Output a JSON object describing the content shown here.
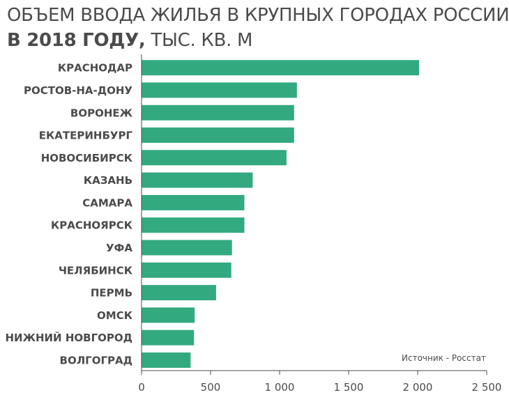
{
  "title": {
    "line1": "ОБЪЕМ ВВОДА ЖИЛЬЯ В КРУПНЫХ ГОРОДАХ РОССИИ",
    "line2_bold": "В 2018 ГОДУ,",
    "line2_rest": " ТЫС. КВ. М"
  },
  "source": "Источник - Росстат",
  "colors": {
    "bar": "#33a97f",
    "text": "#4b4b4b",
    "axis": "#4b4b4b"
  },
  "chart_data": {
    "type": "bar",
    "orientation": "horizontal",
    "title": "ОБЪЕМ ВВОДА ЖИЛЬЯ В КРУПНЫХ ГОРОДАХ РОССИИ В 2018 ГОДУ, ТЫС. КВ. М",
    "categories": [
      "КРАСНОДАР",
      "РОСТОВ-НА-ДОНУ",
      "ВОРОНЕЖ",
      "ЕКАТЕРИНБУРГ",
      "НОВОСИБИРСК",
      "КАЗАНЬ",
      "САМАРА",
      "КРАСНОЯРСК",
      "УФА",
      "ЧЕЛЯБИНСК",
      "ПЕРМЬ",
      "ОМСК",
      "НИЖНИЙ НОВГОРОД",
      "ВОЛГОГРАД"
    ],
    "values": [
      2010,
      1125,
      1105,
      1105,
      1050,
      805,
      745,
      745,
      655,
      650,
      540,
      385,
      380,
      355
    ],
    "xlim": [
      0,
      2500
    ],
    "xticks": [
      0,
      500,
      1000,
      1500,
      2000,
      2500
    ],
    "xtick_labels": [
      "0",
      "500",
      "1 000",
      "1 500",
      "2 000",
      "2 500"
    ],
    "grid": false,
    "legend": "none"
  }
}
